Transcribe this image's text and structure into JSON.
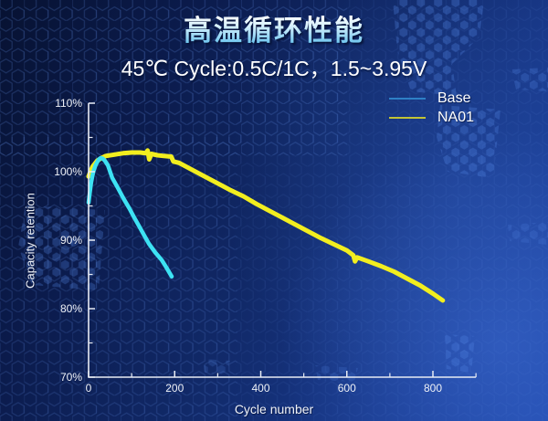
{
  "slide": {
    "title": "高温循环性能",
    "subtitle": "45℃ Cycle:0.5C/1C，1.5~3.95V"
  },
  "colors": {
    "background_top_left": "#081335",
    "background_bottom_right": "#2049ab",
    "axis": "#e8ecf4",
    "tick_text": "#eef1f7",
    "title_gradient_top": "#ffffff",
    "title_gradient_bottom": "#6cc5ef",
    "hex_pattern": "#4f82e0"
  },
  "chart_data": {
    "type": "line",
    "title": "高温循环性能",
    "subtitle": "45℃ Cycle:0.5C/1C，1.5~3.95V",
    "xlabel": "Cycle number",
    "ylabel": "Capacity retention",
    "xlim": [
      0,
      900
    ],
    "ylim": [
      70,
      110
    ],
    "grid": false,
    "legend_position": "top-right",
    "x_major_ticks": [
      0,
      200,
      400,
      600,
      800
    ],
    "x_major_tick_labels": [
      "0",
      "200",
      "400",
      "600",
      "800"
    ],
    "x_minor_ticks": [
      100,
      300,
      500,
      700,
      900
    ],
    "y_major_ticks": [
      70,
      80,
      90,
      100,
      110
    ],
    "y_major_tick_labels": [
      "70%",
      "80%",
      "90%",
      "100%",
      "110%"
    ],
    "y_minor_ticks": [
      75,
      85,
      95,
      105
    ],
    "series": [
      {
        "name": "NA01",
        "color": "#f2ee1f",
        "legend_color": "#c2c435",
        "line_width": 5,
        "points": [
          [
            0,
            99.3
          ],
          [
            5,
            100.2
          ],
          [
            10,
            100.8
          ],
          [
            20,
            101.6
          ],
          [
            30,
            102.0
          ],
          [
            40,
            102.3
          ],
          [
            60,
            102.5
          ],
          [
            80,
            102.7
          ],
          [
            100,
            102.8
          ],
          [
            120,
            102.8
          ],
          [
            133,
            102.7
          ],
          [
            137,
            103.1
          ],
          [
            141,
            101.8
          ],
          [
            146,
            102.6
          ],
          [
            160,
            102.4
          ],
          [
            175,
            102.3
          ],
          [
            192,
            102.2
          ],
          [
            197,
            101.5
          ],
          [
            210,
            101.3
          ],
          [
            240,
            100.3
          ],
          [
            270,
            99.3
          ],
          [
            300,
            98.3
          ],
          [
            330,
            97.3
          ],
          [
            360,
            96.4
          ],
          [
            390,
            95.3
          ],
          [
            420,
            94.3
          ],
          [
            450,
            93.3
          ],
          [
            480,
            92.3
          ],
          [
            510,
            91.3
          ],
          [
            540,
            90.3
          ],
          [
            570,
            89.4
          ],
          [
            600,
            88.5
          ],
          [
            615,
            87.8
          ],
          [
            619,
            86.9
          ],
          [
            624,
            87.5
          ],
          [
            650,
            86.9
          ],
          [
            680,
            86.2
          ],
          [
            710,
            85.4
          ],
          [
            740,
            84.4
          ],
          [
            770,
            83.4
          ],
          [
            800,
            82.2
          ],
          [
            823,
            81.2
          ]
        ]
      },
      {
        "name": "Base",
        "color": "#3de2f3",
        "legend_color": "#2e80c6",
        "line_width": 4.5,
        "points": [
          [
            0,
            95.5
          ],
          [
            3,
            97.0
          ],
          [
            6,
            98.4
          ],
          [
            9,
            99.4
          ],
          [
            12,
            100.2
          ],
          [
            16,
            100.9
          ],
          [
            20,
            101.4
          ],
          [
            24,
            101.8
          ],
          [
            28,
            102.0
          ],
          [
            33,
            101.9
          ],
          [
            38,
            101.6
          ],
          [
            45,
            100.9
          ],
          [
            55,
            99.1
          ],
          [
            70,
            97.4
          ],
          [
            81,
            96.1
          ],
          [
            95,
            94.6
          ],
          [
            106,
            93.3
          ],
          [
            117,
            92.1
          ],
          [
            130,
            90.6
          ],
          [
            140,
            89.5
          ],
          [
            155,
            88.2
          ],
          [
            170,
            87.1
          ],
          [
            180,
            86.1
          ],
          [
            193,
            84.7
          ]
        ]
      }
    ],
    "legend_order": [
      "Base",
      "NA01"
    ]
  }
}
